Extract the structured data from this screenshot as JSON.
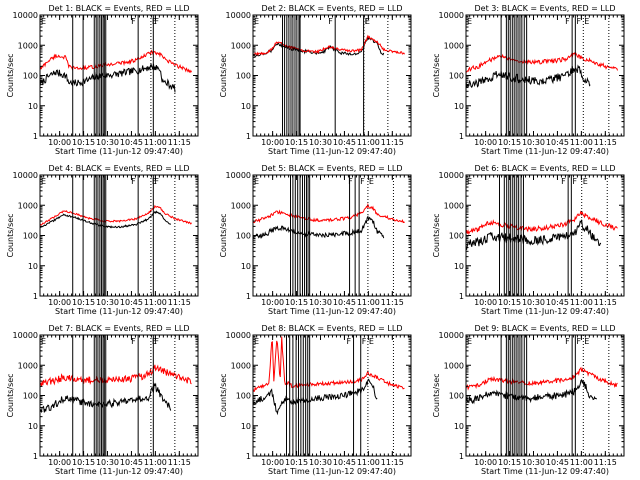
{
  "figure": {
    "colors": {
      "events": "#000000",
      "lld": "#ff0000",
      "axes": "#000000",
      "background": "#ffffff"
    },
    "flags": [
      "E",
      "F",
      "F",
      "E"
    ],
    "xticks": [
      "10:00",
      "10:15",
      "10:30",
      "10:45",
      "11:00",
      "11:15"
    ],
    "yticks": [
      "1",
      "10",
      "100",
      "1000",
      "10000"
    ]
  },
  "chart_data": [
    {
      "type": "line",
      "title": "Det 1: BLACK = Events, RED = LLD",
      "xlabel": "Start Time (11-Jun-12 09:47:40)",
      "ylabel": "Counts/sec",
      "xlim": [
        0,
        99
      ],
      "ylim": [
        1,
        10000
      ],
      "yscale": "log",
      "grid": false,
      "x_ticks_minutes": [
        12.3,
        27.3,
        42.3,
        57.3,
        72.3,
        87.3
      ],
      "series": [
        {
          "name": "Events",
          "color": "#000000",
          "x": [
            0,
            5,
            10,
            16,
            18,
            23,
            30,
            35,
            40,
            48,
            55,
            62,
            70,
            75,
            77,
            80,
            85
          ],
          "y": [
            50,
            90,
            130,
            100,
            60,
            55,
            70,
            90,
            100,
            110,
            130,
            150,
            200,
            170,
            60,
            55,
            35
          ],
          "jitter": 0.12
        },
        {
          "name": "LLD",
          "color": "#ff0000",
          "x": [
            0,
            5,
            10,
            16,
            18,
            23,
            30,
            40,
            55,
            62,
            70,
            75,
            80,
            85,
            90,
            95
          ],
          "y": [
            160,
            300,
            450,
            400,
            200,
            170,
            180,
            220,
            280,
            350,
            600,
            500,
            300,
            220,
            170,
            140
          ],
          "jitter": 0.06
        }
      ],
      "vlines": [
        20.5,
        27.0,
        34.0,
        35.2,
        36.3,
        37.5,
        38.5,
        39.5,
        40.3,
        41.2,
        61.5,
        71.0
      ],
      "dotted_vlines": [
        69.5,
        84.5
      ]
    },
    {
      "type": "line",
      "title": "Det 2: BLACK = Events, RED = LLD",
      "xlabel": "Start Time (11-Jun-12 09:47:40)",
      "ylabel": "Counts/sec",
      "xlim": [
        0,
        99
      ],
      "ylim": [
        1,
        10000
      ],
      "yscale": "log",
      "grid": false,
      "x_ticks_minutes": [
        12.3,
        27.3,
        42.3,
        57.3,
        72.3,
        87.3
      ],
      "series": [
        {
          "name": "Events",
          "color": "#000000",
          "x": [
            0,
            8,
            12,
            15,
            22,
            30,
            40,
            45,
            48,
            55,
            62,
            68,
            72,
            78,
            80,
            82
          ],
          "y": [
            450,
            550,
            700,
            1200,
            800,
            650,
            550,
            650,
            900,
            550,
            500,
            600,
            1800,
            1200,
            600,
            500
          ],
          "jitter": 0.05
        },
        {
          "name": "LLD",
          "color": "#ff0000",
          "x": [
            0,
            8,
            12,
            15,
            22,
            30,
            40,
            48,
            55,
            62,
            68,
            72,
            78,
            82,
            90,
            95
          ],
          "y": [
            500,
            550,
            750,
            1300,
            900,
            700,
            600,
            900,
            700,
            650,
            700,
            1900,
            1300,
            700,
            600,
            550
          ],
          "jitter": 0.04
        }
      ],
      "vlines": [
        18.5,
        19.8,
        21.2,
        22.5,
        23.8,
        25.0,
        26.3,
        27.5,
        28.8,
        29.5,
        51.5,
        69.3
      ],
      "dotted_vlines": [
        69.5,
        84.5
      ]
    },
    {
      "type": "line",
      "title": "Det 3: BLACK = Events, RED = LLD",
      "xlabel": "Start Time (11-Jun-12 09:47:40)",
      "ylabel": "Counts/sec",
      "xlim": [
        0,
        99
      ],
      "ylim": [
        1,
        10000
      ],
      "yscale": "log",
      "grid": false,
      "x_ticks_minutes": [
        12.3,
        27.3,
        42.3,
        57.3,
        72.3,
        87.3
      ],
      "series": [
        {
          "name": "Events",
          "color": "#000000",
          "x": [
            0,
            8,
            14,
            20,
            28,
            35,
            45,
            55,
            62,
            68,
            72,
            75,
            78
          ],
          "y": [
            50,
            60,
            75,
            110,
            90,
            75,
            70,
            80,
            95,
            180,
            130,
            70,
            55
          ],
          "jitter": 0.15
        },
        {
          "name": "LLD",
          "color": "#ff0000",
          "x": [
            0,
            8,
            14,
            20,
            28,
            35,
            45,
            55,
            62,
            68,
            72,
            78,
            85,
            90,
            95
          ],
          "y": [
            150,
            200,
            300,
            450,
            350,
            300,
            280,
            300,
            350,
            500,
            400,
            300,
            220,
            180,
            150
          ],
          "jitter": 0.07
        }
      ],
      "vlines": [
        22.0,
        25.3,
        26.5,
        27.7,
        29.0,
        30.2,
        31.4,
        32.6,
        33.8,
        35.0,
        36.5,
        38.0,
        66.5,
        68.5
      ],
      "dotted_vlines": [
        73.5,
        89.5
      ]
    },
    {
      "type": "line",
      "title": "Det 4: BLACK = Events, RED = LLD",
      "xlabel": "Start Time (11-Jun-12 09:47:40)",
      "ylabel": "Counts/sec",
      "xlim": [
        0,
        99
      ],
      "ylim": [
        1,
        10000
      ],
      "yscale": "log",
      "grid": false,
      "x_ticks_minutes": [
        12.3,
        27.3,
        42.3,
        57.3,
        72.3,
        87.3
      ],
      "series": [
        {
          "name": "Events",
          "color": "#000000",
          "x": [
            0,
            8,
            15,
            22,
            30,
            40,
            50,
            60,
            68,
            72,
            75,
            78,
            82
          ],
          "y": [
            180,
            300,
            480,
            400,
            280,
            200,
            190,
            230,
            350,
            600,
            550,
            350,
            220
          ],
          "jitter": 0.03
        },
        {
          "name": "LLD",
          "color": "#ff0000",
          "x": [
            0,
            8,
            15,
            22,
            30,
            40,
            50,
            60,
            68,
            72,
            75,
            78,
            85,
            90,
            95
          ],
          "y": [
            220,
            380,
            650,
            520,
            380,
            300,
            300,
            350,
            550,
            900,
            850,
            550,
            350,
            300,
            250
          ],
          "jitter": 0.03
        }
      ],
      "vlines": [
        20.5,
        27.0,
        34.0,
        35.2,
        36.3,
        37.5,
        38.5,
        39.5,
        40.3,
        41.2,
        61.5,
        71.0
      ],
      "dotted_vlines": [
        69.5,
        84.5
      ]
    },
    {
      "type": "line",
      "title": "Det 5: BLACK = Events, RED = LLD",
      "xlabel": "Start Time (11-Jun-12 09:47:40)",
      "ylabel": "Counts/sec",
      "xlim": [
        0,
        99
      ],
      "ylim": [
        1,
        10000
      ],
      "yscale": "log",
      "grid": false,
      "x_ticks_minutes": [
        12.3,
        27.3,
        42.3,
        57.3,
        72.3,
        87.3
      ],
      "series": [
        {
          "name": "Events",
          "color": "#000000",
          "x": [
            0,
            8,
            15,
            22,
            30,
            40,
            50,
            60,
            68,
            72,
            75,
            78,
            82
          ],
          "y": [
            90,
            110,
            180,
            160,
            120,
            100,
            110,
            120,
            150,
            400,
            300,
            130,
            90
          ],
          "jitter": 0.08
        },
        {
          "name": "LLD",
          "color": "#ff0000",
          "x": [
            0,
            8,
            15,
            22,
            30,
            40,
            50,
            60,
            68,
            72,
            75,
            78,
            85,
            90,
            95
          ],
          "y": [
            280,
            380,
            600,
            500,
            380,
            320,
            330,
            380,
            550,
            950,
            800,
            500,
            380,
            330,
            280
          ],
          "jitter": 0.05
        }
      ],
      "vlines": [
        23.5,
        25.0,
        26.5,
        28.0,
        29.5,
        31.0,
        32.3,
        33.5,
        34.5,
        35.5,
        60.5,
        64.0,
        66.5
      ],
      "dotted_vlines": [
        72.0,
        88.0
      ]
    },
    {
      "type": "line",
      "title": "Det 6: BLACK = Events, RED = LLD",
      "xlabel": "Start Time (11-Jun-12 09:47:40)",
      "ylabel": "Counts/sec",
      "xlim": [
        0,
        99
      ],
      "ylim": [
        1,
        10000
      ],
      "yscale": "log",
      "grid": false,
      "x_ticks_minutes": [
        12.3,
        27.3,
        42.3,
        57.3,
        72.3,
        87.3
      ],
      "series": [
        {
          "name": "Events",
          "color": "#000000",
          "x": [
            0,
            8,
            15,
            22,
            30,
            40,
            50,
            60,
            68,
            72,
            75,
            80,
            85
          ],
          "y": [
            50,
            60,
            90,
            90,
            80,
            70,
            75,
            90,
            120,
            250,
            180,
            80,
            50
          ],
          "jitter": 0.15
        },
        {
          "name": "LLD",
          "color": "#ff0000",
          "x": [
            0,
            8,
            15,
            22,
            30,
            40,
            50,
            60,
            68,
            72,
            78,
            85,
            90,
            95
          ],
          "y": [
            130,
            160,
            280,
            230,
            190,
            160,
            180,
            220,
            330,
            550,
            400,
            250,
            200,
            160
          ],
          "jitter": 0.08
        }
      ],
      "vlines": [
        21.0,
        24.0,
        25.5,
        26.8,
        28.0,
        29.3,
        30.5,
        31.8,
        33.0,
        34.5,
        36.0,
        64.0,
        66.0
      ],
      "dotted_vlines": [
        72.5,
        88.5
      ]
    },
    {
      "type": "line",
      "title": "Det 7: BLACK = Events, RED = LLD",
      "xlabel": "Start Time (11-Jun-12 09:47:40)",
      "ylabel": "Counts/sec",
      "xlim": [
        0,
        99
      ],
      "ylim": [
        1,
        10000
      ],
      "yscale": "log",
      "grid": false,
      "x_ticks_minutes": [
        12.3,
        27.3,
        42.3,
        57.3,
        72.3,
        87.3
      ],
      "series": [
        {
          "name": "Events",
          "color": "#000000",
          "x": [
            0,
            8,
            15,
            22,
            30,
            40,
            50,
            60,
            68,
            72,
            75,
            78,
            82
          ],
          "y": [
            30,
            45,
            80,
            70,
            55,
            50,
            60,
            70,
            90,
            200,
            120,
            60,
            40
          ],
          "jitter": 0.12
        },
        {
          "name": "LLD",
          "color": "#ff0000",
          "x": [
            0,
            8,
            15,
            22,
            30,
            40,
            50,
            60,
            68,
            72,
            78,
            85,
            90,
            95
          ],
          "y": [
            250,
            300,
            400,
            380,
            330,
            320,
            340,
            380,
            500,
            800,
            600,
            450,
            350,
            300
          ],
          "jitter": 0.12
        }
      ],
      "vlines": [
        20.5,
        27.0,
        34.0,
        35.2,
        36.3,
        37.5,
        38.5,
        39.5,
        40.3,
        41.2,
        61.5,
        71.0
      ],
      "dotted_vlines": [
        69.5,
        84.5
      ]
    },
    {
      "type": "line",
      "title": "Det 8: BLACK = Events, RED = LLD",
      "xlabel": "Start Time (11-Jun-12 09:47:40)",
      "ylabel": "Counts/sec",
      "xlim": [
        0,
        99
      ],
      "ylim": [
        1,
        10000
      ],
      "yscale": "log",
      "grid": false,
      "x_ticks_minutes": [
        12.3,
        27.3,
        42.3,
        57.3,
        72.3,
        87.3
      ],
      "series": [
        {
          "name": "Events",
          "color": "#000000",
          "x": [
            0,
            8,
            12,
            15,
            20,
            25,
            30,
            40,
            50,
            60,
            68,
            72,
            75,
            78
          ],
          "y": [
            60,
            90,
            130,
            25,
            80,
            60,
            70,
            80,
            90,
            110,
            150,
            300,
            200,
            70
          ],
          "jitter": 0.1
        },
        {
          "name": "LLD",
          "color": "#ff0000",
          "x": [
            0,
            5,
            10,
            12,
            13,
            15,
            17,
            18,
            20,
            22,
            25,
            30,
            40,
            50,
            60,
            68,
            72,
            78,
            85,
            90,
            95
          ],
          "y": [
            150,
            200,
            250,
            10000,
            300,
            9000,
            300,
            8000,
            200,
            250,
            200,
            220,
            240,
            260,
            280,
            330,
            550,
            400,
            250,
            200,
            170
          ],
          "jitter": 0.06
        }
      ],
      "vlines": [
        21.0,
        23.0,
        25.0,
        27.0,
        28.5,
        30.0,
        31.5,
        33.0,
        34.3,
        35.5,
        63.0,
        67.5
      ],
      "dotted_vlines": [
        72.0,
        88.0
      ]
    },
    {
      "type": "line",
      "title": "Det 9: BLACK = Events, RED = LLD",
      "xlabel": "Start Time (11-Jun-12 09:47:40)",
      "ylabel": "Counts/sec",
      "xlim": [
        0,
        99
      ],
      "ylim": [
        1,
        10000
      ],
      "yscale": "log",
      "grid": false,
      "x_ticks_minutes": [
        12.3,
        27.3,
        42.3,
        57.3,
        72.3,
        87.3
      ],
      "series": [
        {
          "name": "Events",
          "color": "#000000",
          "x": [
            0,
            8,
            15,
            22,
            30,
            40,
            50,
            60,
            68,
            72,
            75,
            78,
            82
          ],
          "y": [
            70,
            80,
            120,
            110,
            90,
            80,
            90,
            100,
            140,
            280,
            200,
            90,
            60
          ],
          "jitter": 0.12
        },
        {
          "name": "LLD",
          "color": "#ff0000",
          "x": [
            0,
            8,
            15,
            22,
            30,
            40,
            50,
            60,
            68,
            72,
            78,
            85,
            90,
            95
          ],
          "y": [
            180,
            220,
            350,
            320,
            280,
            260,
            280,
            320,
            420,
            700,
            500,
            330,
            260,
            220
          ],
          "jitter": 0.07
        }
      ],
      "vlines": [
        22.0,
        25.3,
        26.5,
        27.7,
        29.0,
        30.2,
        31.4,
        32.6,
        33.8,
        35.0,
        36.5,
        38.0,
        66.5,
        68.5
      ],
      "dotted_vlines": [
        73.5,
        89.5
      ]
    }
  ]
}
